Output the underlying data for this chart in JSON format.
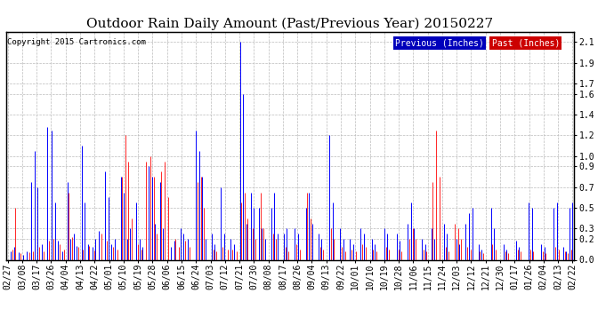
{
  "title": "Outdoor Rain Daily Amount (Past/Previous Year) 20150227",
  "copyright": "Copyright 2015 Cartronics.com",
  "legend_labels": [
    "Previous (Inches)",
    "Past (Inches)"
  ],
  "legend_bg_colors": [
    "#0000bb",
    "#cc0000"
  ],
  "yticks": [
    0.0,
    0.2,
    0.3,
    0.5,
    0.7,
    0.9,
    1.0,
    1.2,
    1.4,
    1.6,
    1.7,
    1.9,
    2.1
  ],
  "ylim": [
    0.0,
    2.2
  ],
  "x_labels": [
    "02/27",
    "03/08",
    "03/17",
    "03/26",
    "04/04",
    "04/13",
    "04/22",
    "05/01",
    "05/10",
    "05/19",
    "05/28",
    "06/06",
    "06/15",
    "06/24",
    "07/03",
    "07/12",
    "07/21",
    "07/30",
    "08/08",
    "08/17",
    "08/26",
    "09/04",
    "09/13",
    "09/22",
    "10/01",
    "10/10",
    "10/19",
    "10/28",
    "11/06",
    "11/15",
    "11/24",
    "12/03",
    "12/12",
    "12/21",
    "12/30",
    "01/17",
    "01/26",
    "02/04",
    "02/13",
    "02/22"
  ],
  "background_color": "#ffffff",
  "grid_color": "#bbbbbb",
  "title_fontsize": 11,
  "tick_fontsize": 7,
  "n_days": 361
}
